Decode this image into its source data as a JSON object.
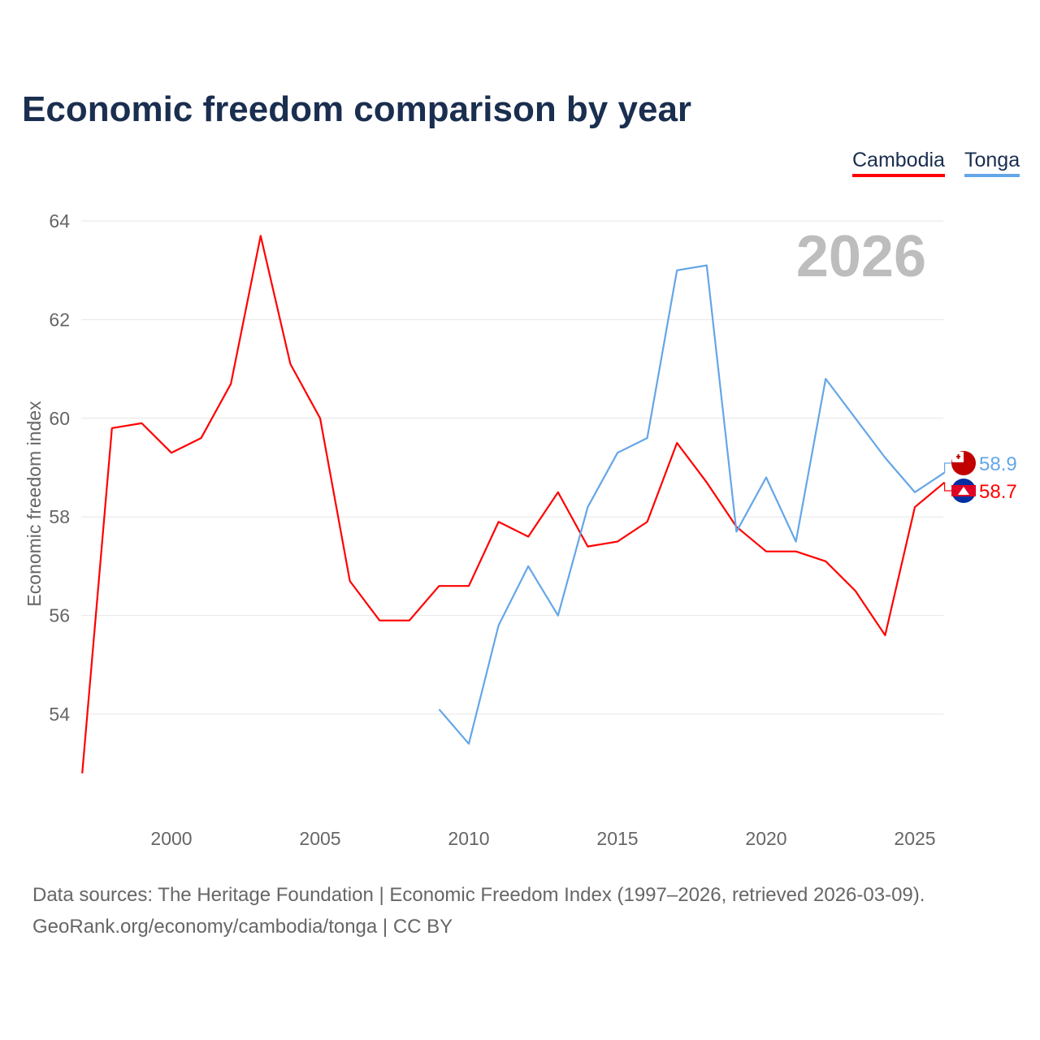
{
  "title": "Economic freedom comparison by year",
  "source_line1": "Data sources: The Heritage Foundation | Economic Freedom Index (1997–2026, retrieved 2026-03-09).",
  "source_line2": "GeoRank.org/economy/cambodia/tonga | CC BY",
  "chart_data": {
    "type": "line",
    "title": "Economic freedom comparison by year",
    "xlabel": "",
    "ylabel": "Economic freedom index",
    "xlim": [
      1997,
      2026
    ],
    "ylim": [
      52.5,
      64.3
    ],
    "yticks": [
      54,
      56,
      58,
      60,
      62,
      64
    ],
    "xticks": [
      2000,
      2005,
      2010,
      2015,
      2020,
      2025
    ],
    "grid": true,
    "legend_placement": "top-right",
    "year_watermark": "2026",
    "series": [
      {
        "name": "Cambodia",
        "color": "#ff0000",
        "end_label": "58.7",
        "x": [
          1997,
          1998,
          1999,
          2000,
          2001,
          2002,
          2003,
          2004,
          2005,
          2006,
          2007,
          2008,
          2009,
          2010,
          2011,
          2012,
          2013,
          2014,
          2015,
          2016,
          2017,
          2018,
          2019,
          2020,
          2021,
          2022,
          2023,
          2024,
          2025,
          2026
        ],
        "values": [
          52.8,
          59.8,
          59.9,
          59.3,
          59.6,
          60.7,
          63.7,
          61.1,
          60.0,
          56.7,
          55.9,
          55.9,
          56.6,
          56.6,
          57.9,
          57.6,
          58.5,
          57.4,
          57.5,
          57.9,
          59.5,
          58.7,
          57.8,
          57.3,
          57.3,
          57.1,
          56.5,
          55.6,
          58.2,
          58.7
        ]
      },
      {
        "name": "Tonga",
        "color": "#64a6e8",
        "end_label": "58.9",
        "x": [
          2009,
          2010,
          2011,
          2012,
          2013,
          2014,
          2015,
          2016,
          2017,
          2018,
          2019,
          2020,
          2021,
          2022,
          2023,
          2024,
          2025,
          2026
        ],
        "values": [
          54.1,
          53.4,
          55.8,
          57.0,
          56.0,
          58.2,
          59.3,
          59.6,
          63.0,
          63.1,
          57.7,
          58.8,
          57.5,
          60.8,
          60.0,
          59.2,
          58.5,
          58.9
        ]
      }
    ]
  }
}
